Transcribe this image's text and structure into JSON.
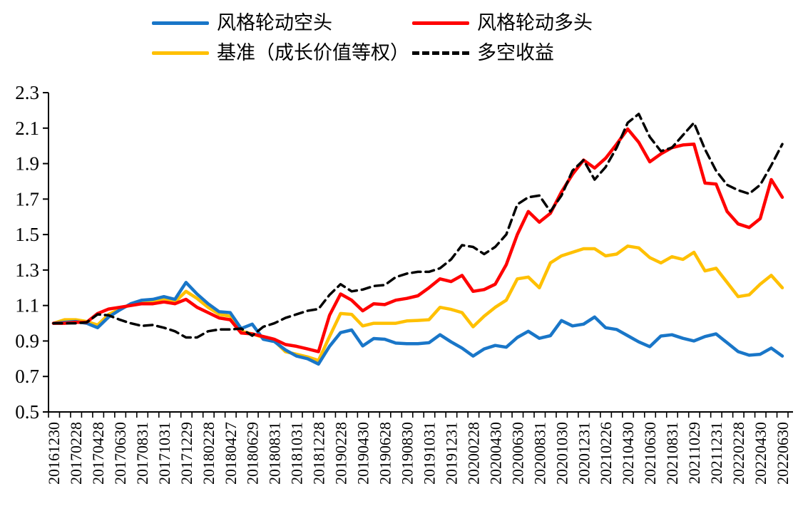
{
  "chart_data": {
    "type": "line",
    "title": "",
    "xlabel": "",
    "ylabel": "",
    "ylim": [
      0.5,
      2.3
    ],
    "ytick_step": 0.2,
    "ytick_labels": [
      "0.5",
      "0.7",
      "0.9",
      "1.1",
      "1.3",
      "1.5",
      "1.7",
      "1.9",
      "2.1",
      "2.3"
    ],
    "grid": false,
    "legend_position": "top",
    "label_every_n_points": 2,
    "points_per_series": 67,
    "categories": [
      "20161230",
      "20170228",
      "20170428",
      "20170630",
      "20170831",
      "20171031",
      "20171229",
      "20180228",
      "20180427",
      "20180629",
      "20180831",
      "20181031",
      "20181228",
      "20190228",
      "20190430",
      "20190628",
      "20190830",
      "20191031",
      "20191231",
      "20200228",
      "20200430",
      "20200630",
      "20200831",
      "20201030",
      "20201231",
      "20210226",
      "20210430",
      "20210630",
      "20210831",
      "20211029",
      "20211231",
      "20220228",
      "20220430",
      "20220630"
    ],
    "series": [
      {
        "name": "风格轮动空头",
        "color": "#1976C8",
        "style": "solid",
        "values": [
          1.0,
          1.005,
          1.01,
          1.0,
          0.975,
          1.035,
          1.075,
          1.11,
          1.13,
          1.135,
          1.15,
          1.135,
          1.23,
          1.165,
          1.11,
          1.065,
          1.06,
          0.97,
          0.995,
          0.91,
          0.897,
          0.85,
          0.815,
          0.8,
          0.77,
          0.87,
          0.947,
          0.962,
          0.872,
          0.914,
          0.91,
          0.888,
          0.885,
          0.885,
          0.89,
          0.935,
          0.895,
          0.86,
          0.815,
          0.855,
          0.875,
          0.865,
          0.92,
          0.955,
          0.915,
          0.93,
          1.015,
          0.985,
          0.995,
          1.035,
          0.975,
          0.965,
          0.93,
          0.895,
          0.868,
          0.928,
          0.935,
          0.915,
          0.9,
          0.925,
          0.94,
          0.89,
          0.84,
          0.82,
          0.825,
          0.86,
          0.815
        ]
      },
      {
        "name": "风格轮动多头",
        "color": "#FF0000",
        "style": "solid",
        "values": [
          1.0,
          1.0,
          1.005,
          1.005,
          1.055,
          1.08,
          1.09,
          1.1,
          1.11,
          1.11,
          1.12,
          1.11,
          1.135,
          1.09,
          1.06,
          1.03,
          1.02,
          0.945,
          0.94,
          0.925,
          0.91,
          0.88,
          0.87,
          0.855,
          0.84,
          1.045,
          1.165,
          1.13,
          1.07,
          1.11,
          1.105,
          1.13,
          1.14,
          1.155,
          1.2,
          1.25,
          1.235,
          1.27,
          1.18,
          1.19,
          1.22,
          1.33,
          1.5,
          1.63,
          1.57,
          1.62,
          1.74,
          1.84,
          1.92,
          1.875,
          1.93,
          2.01,
          2.095,
          2.02,
          1.91,
          1.955,
          1.99,
          2.005,
          2.01,
          1.79,
          1.785,
          1.63,
          1.56,
          1.54,
          1.59,
          1.81,
          1.71
        ]
      },
      {
        "name": "基准（成长价值等权）",
        "color": "#FFC000",
        "style": "solid",
        "values": [
          1.0,
          1.02,
          1.02,
          1.01,
          0.99,
          1.05,
          1.08,
          1.105,
          1.12,
          1.12,
          1.14,
          1.12,
          1.18,
          1.14,
          1.09,
          1.05,
          1.04,
          0.955,
          0.94,
          0.92,
          0.9,
          0.84,
          0.825,
          0.81,
          0.79,
          0.925,
          1.055,
          1.05,
          0.985,
          1.0,
          1.0,
          1.0,
          1.013,
          1.016,
          1.02,
          1.09,
          1.078,
          1.06,
          0.98,
          1.04,
          1.09,
          1.13,
          1.25,
          1.26,
          1.2,
          1.34,
          1.38,
          1.4,
          1.42,
          1.42,
          1.38,
          1.39,
          1.435,
          1.425,
          1.37,
          1.34,
          1.375,
          1.36,
          1.4,
          1.295,
          1.31,
          1.23,
          1.15,
          1.16,
          1.22,
          1.27,
          1.2
        ]
      },
      {
        "name": "多空收益",
        "color": "#000000",
        "style": "dashed",
        "values": [
          1.0,
          1.0,
          1.0,
          1.005,
          1.05,
          1.045,
          1.02,
          1.0,
          0.985,
          0.99,
          0.975,
          0.955,
          0.92,
          0.92,
          0.955,
          0.965,
          0.965,
          0.97,
          0.93,
          0.98,
          1.0,
          1.03,
          1.05,
          1.07,
          1.08,
          1.16,
          1.22,
          1.18,
          1.19,
          1.21,
          1.215,
          1.26,
          1.28,
          1.29,
          1.29,
          1.31,
          1.36,
          1.44,
          1.43,
          1.39,
          1.43,
          1.5,
          1.67,
          1.71,
          1.72,
          1.63,
          1.72,
          1.86,
          1.92,
          1.81,
          1.88,
          1.99,
          2.13,
          2.18,
          2.05,
          1.97,
          1.99,
          2.06,
          2.13,
          1.98,
          1.86,
          1.78,
          1.75,
          1.73,
          1.78,
          1.89,
          2.01
        ]
      }
    ]
  }
}
